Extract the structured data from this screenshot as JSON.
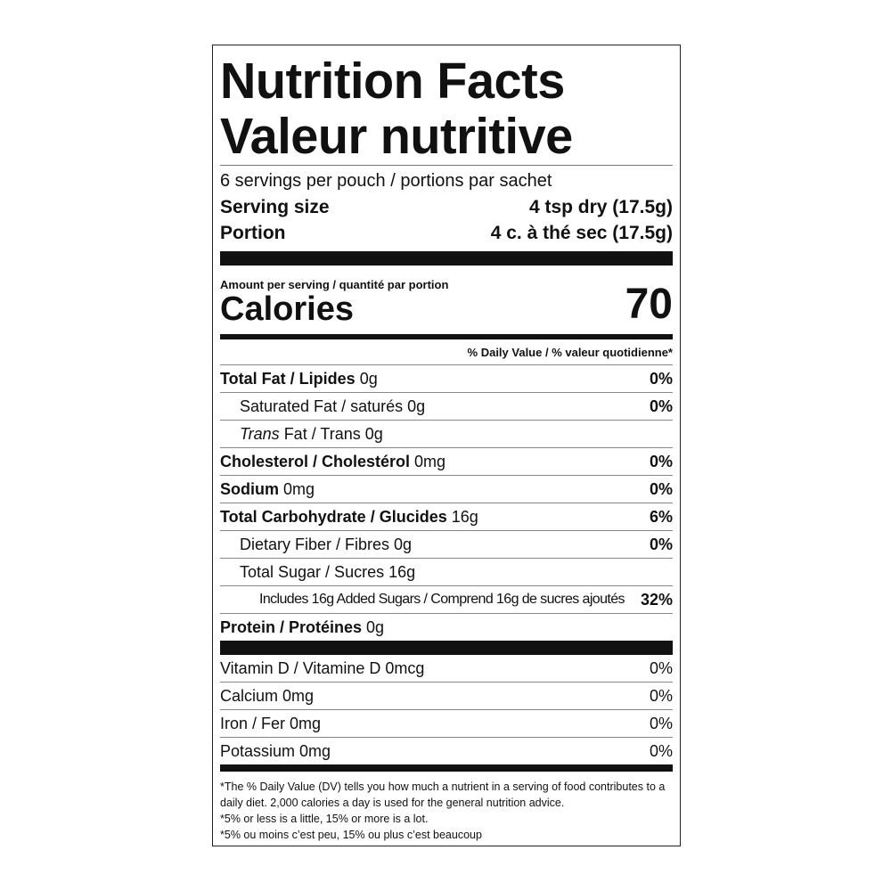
{
  "title_en": "Nutrition Facts",
  "title_fr": "Valeur nutritive",
  "servings": "6 servings per pouch / portions par sachet",
  "serving_size": {
    "label": "Serving size",
    "value": "4 tsp dry (17.5g)"
  },
  "portion": {
    "label": "Portion",
    "value": "4 c. à thé sec (17.5g)"
  },
  "amount_per_serving": "Amount per serving / quantité par portion",
  "calories": {
    "label": "Calories",
    "value": "70"
  },
  "dv_header": "% Daily Value / % valeur quotidienne*",
  "nutrients": [
    {
      "bold": "Total Fat / Lipides",
      "italic": "",
      "text": "",
      "amount": " 0g",
      "dv": "0%",
      "indent": 0
    },
    {
      "bold": "",
      "italic": "",
      "text": "Saturated Fat / saturés",
      "amount": " 0g",
      "dv": "0%",
      "indent": 1
    },
    {
      "bold": "",
      "italic": "Trans",
      "text": " Fat / Trans",
      "amount": " 0g",
      "dv": "",
      "indent": 1
    },
    {
      "bold": "Cholesterol / Cholestérol",
      "italic": "",
      "text": "",
      "amount": " 0mg",
      "dv": "0%",
      "indent": 0
    },
    {
      "bold": "Sodium",
      "italic": "",
      "text": "",
      "amount": " 0mg",
      "dv": "0%",
      "indent": 0
    },
    {
      "bold": "Total Carbohydrate / Glucides",
      "italic": "",
      "text": "",
      "amount": " 16g",
      "dv": "6%",
      "indent": 0
    },
    {
      "bold": "",
      "italic": "",
      "text": "Dietary Fiber / Fibres",
      "amount": " 0g",
      "dv": "0%",
      "indent": 1
    },
    {
      "bold": "",
      "italic": "",
      "text": "Total Sugar / Sucres",
      "amount": " 16g",
      "dv": "",
      "indent": 1
    },
    {
      "bold": "",
      "italic": "",
      "text": "Includes 16g Added Sugars / Comprend 16g de sucres ajoutés",
      "amount": "",
      "dv": "32%",
      "indent": 2
    },
    {
      "bold": "Protein / Protéines",
      "italic": "",
      "text": "",
      "amount": " 0g",
      "dv": "",
      "indent": 0
    }
  ],
  "vitamins": [
    {
      "label": "Vitamin D / Vitamine D 0mcg",
      "dv": "0%"
    },
    {
      "label": "Calcium 0mg",
      "dv": "0%"
    },
    {
      "label": "Iron / Fer 0mg",
      "dv": "0%"
    },
    {
      "label": "Potassium 0mg",
      "dv": "0%"
    }
  ],
  "footnotes": [
    "*The % Daily Value (DV) tells you how much a nutrient in a serving of food contributes to a daily diet. 2,000 calories a day is used for the general nutrition advice.",
    "*5% or less is a little, 15% or more is a lot.",
    "*5% ou moins c’est peu, 15% ou plus c’est beaucoup"
  ]
}
